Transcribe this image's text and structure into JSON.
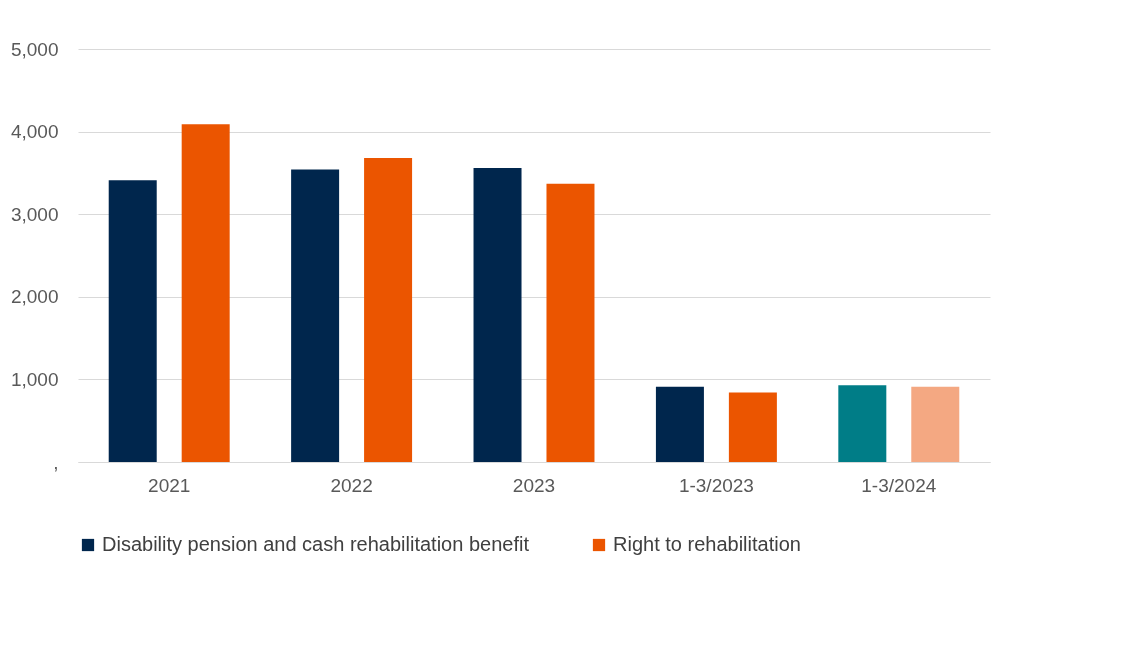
{
  "chart_data": {
    "type": "bar",
    "categories": [
      "2021",
      "2022",
      "2023",
      "1-3/2023",
      "1-3/2024"
    ],
    "series": [
      {
        "name": "Disability pension and cash rehabilitation benefit",
        "color": "#00264d",
        "colors": [
          "#00264d",
          "#00264d",
          "#00264d",
          "#00264d",
          "#007d87"
        ],
        "values": [
          3410,
          3540,
          3560,
          910,
          930
        ]
      },
      {
        "name": "Right to rehabilitation",
        "color": "#eb5500",
        "colors": [
          "#eb5500",
          "#eb5500",
          "#eb5500",
          "#eb5500",
          "#f4a882"
        ],
        "values": [
          4090,
          3680,
          3370,
          840,
          910
        ]
      }
    ],
    "ylim": [
      0,
      5000
    ],
    "yticks": [
      {
        "value": 0,
        "label": ","
      },
      {
        "value": 1000,
        "label": "1,000"
      },
      {
        "value": 2000,
        "label": "2,000"
      },
      {
        "value": 3000,
        "label": "3,000"
      },
      {
        "value": 4000,
        "label": "4,000"
      },
      {
        "value": 5000,
        "label": "5,000"
      }
    ],
    "grid": "y",
    "legend": "bottom"
  }
}
